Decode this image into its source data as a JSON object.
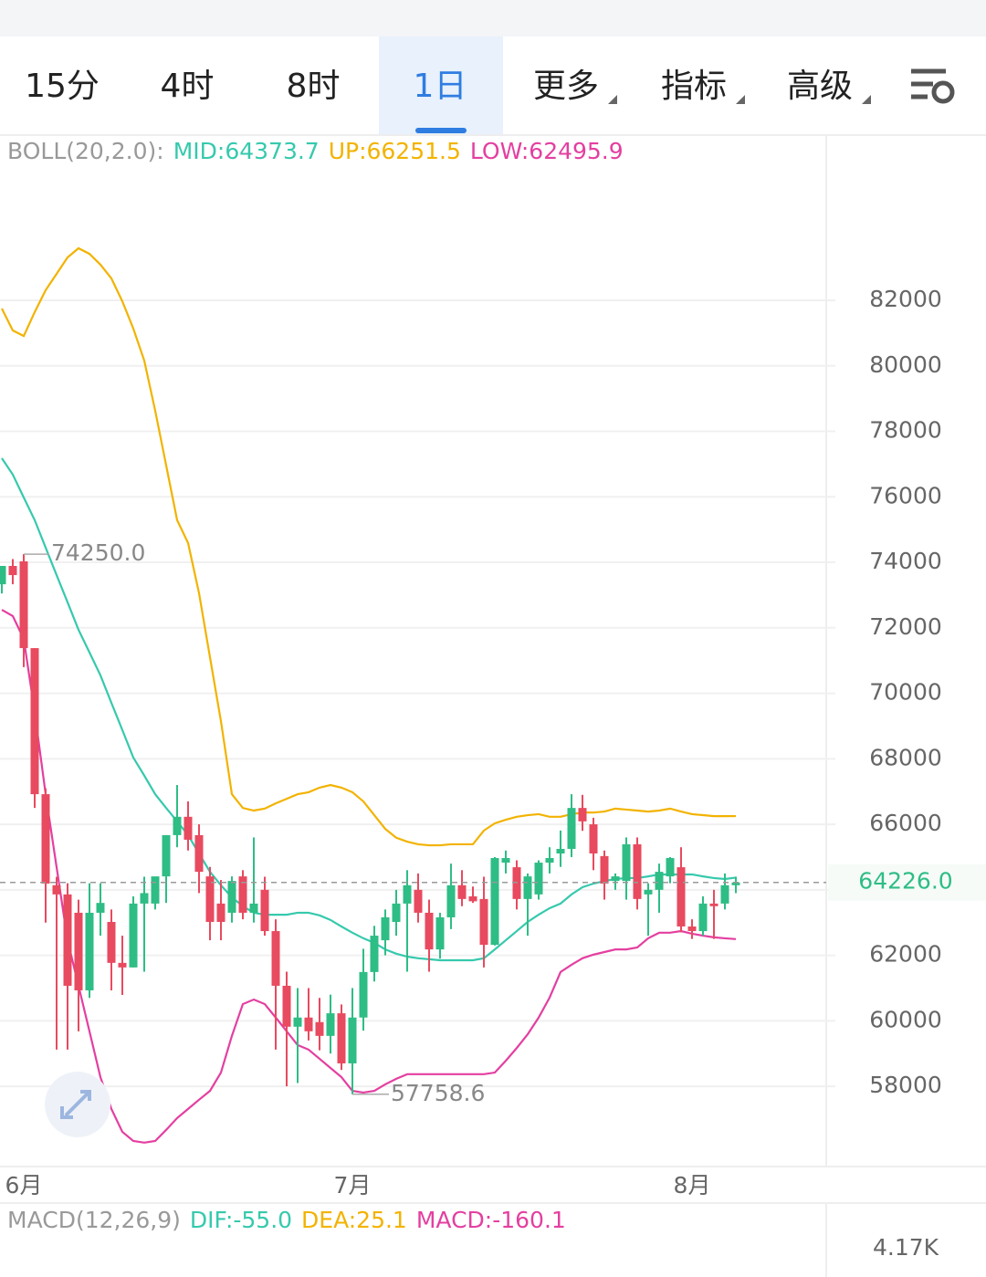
{
  "tabs": {
    "items": [
      "15分",
      "4时",
      "8时",
      "1日",
      "更多",
      "指标",
      "高级"
    ],
    "selected": 3
  },
  "chart_data": {
    "type": "candlestick",
    "legend": {
      "label": "BOLL(20,2.0):",
      "items": [
        "MID:64373.7",
        "UP:66251.5",
        "LOW:62495.9"
      ]
    },
    "categories": [
      null,
      null,
      "6月",
      null,
      null,
      null,
      null,
      null,
      null,
      null,
      null,
      null,
      null,
      null,
      null,
      null,
      null,
      null,
      null,
      null,
      null,
      null,
      null,
      null,
      null,
      null,
      null,
      null,
      null,
      null,
      null,
      null,
      "7月",
      null,
      null,
      null,
      null,
      null,
      null,
      null,
      null,
      null,
      null,
      null,
      null,
      null,
      null,
      null,
      null,
      null,
      null,
      null,
      null,
      null,
      null,
      null,
      null,
      null,
      null,
      null,
      null,
      null,
      null,
      "8月",
      null,
      null,
      null,
      null
    ],
    "open": [
      73330,
      73890,
      74030,
      71380,
      66920,
      64140,
      63860,
      63300,
      60930,
      63300,
      63020,
      61770,
      61630,
      63580,
      63580,
      64410,
      65670,
      66230,
      65670,
      64410,
      63580,
      63300,
      64410,
      63300,
      64000,
      62740,
      61070,
      59820,
      60100,
      59960,
      59540,
      60230,
      58700,
      60100,
      61490,
      62460,
      63020,
      63580,
      64000,
      63300,
      62180,
      63160,
      64140,
      63800,
      63720,
      62320,
      64830,
      64690,
      63720,
      63860,
      64830,
      65110,
      65250,
      66500,
      66000,
      65030,
      64270,
      64270,
      65390,
      63860,
      64000,
      64410,
      64690,
      62880,
      62740,
      63580,
      63580,
      64140
    ],
    "high": [
      73890,
      74100,
      74250,
      71380,
      67100,
      64400,
      64200,
      63700,
      64200,
      64200,
      63400,
      62600,
      63800,
      64400,
      64400,
      65670,
      67200,
      66700,
      66000,
      64700,
      64300,
      64410,
      64600,
      65600,
      64400,
      63100,
      61500,
      61000,
      61000,
      60700,
      60800,
      60500,
      61000,
      62200,
      62900,
      63400,
      64000,
      64600,
      64500,
      63700,
      63300,
      64800,
      64600,
      64100,
      64400,
      65000,
      65200,
      64900,
      64500,
      64900,
      65300,
      65810,
      66920,
      66900,
      66200,
      65200,
      64500,
      65600,
      65600,
      64200,
      64800,
      65000,
      65300,
      63100,
      63800,
      64000,
      64500,
      64400
    ],
    "low": [
      73050,
      73330,
      70800,
      66500,
      63000,
      59120,
      59120,
      59680,
      60700,
      62600,
      60930,
      60790,
      61630,
      61500,
      63400,
      63600,
      65300,
      65200,
      63900,
      62460,
      62460,
      63000,
      63100,
      63000,
      62600,
      59120,
      58000,
      58100,
      59400,
      59100,
      59000,
      58500,
      57758.6,
      59700,
      61200,
      62000,
      62600,
      61500,
      63000,
      61500,
      61900,
      62800,
      63500,
      63600,
      61630,
      62300,
      64500,
      63400,
      62600,
      63700,
      64500,
      64700,
      65000,
      65800,
      64600,
      63700,
      64000,
      63700,
      63400,
      62600,
      63300,
      64200,
      62700,
      62500,
      62600,
      62500,
      63400,
      63900
    ],
    "close": [
      73890,
      73610,
      71380,
      66920,
      64190,
      63860,
      61070,
      60930,
      63300,
      63600,
      61770,
      61630,
      63580,
      63900,
      64410,
      65670,
      66230,
      65530,
      64550,
      63020,
      63020,
      64270,
      63300,
      63580,
      62740,
      61070,
      59820,
      60100,
      59680,
      59540,
      60230,
      58700,
      60100,
      61490,
      62600,
      63160,
      63580,
      64140,
      63300,
      62180,
      63160,
      64140,
      63720,
      63650,
      62320,
      64970,
      64970,
      63720,
      64410,
      64830,
      64970,
      65250,
      66500,
      66090,
      65110,
      64190,
      64410,
      65390,
      63720,
      64000,
      64550,
      64970,
      62880,
      62740,
      63580,
      63500,
      64140,
      64226
    ],
    "up_color": "#2ebd85",
    "down_color": "#e84a5f",
    "series": [
      {
        "color": "#36c9ad",
        "values": [
          77180,
          76680,
          75980,
          75290,
          74450,
          73610,
          72780,
          71940,
          71250,
          70550,
          69710,
          68880,
          68040,
          67490,
          66920,
          66500,
          66090,
          65670,
          65110,
          64550,
          64140,
          63770,
          63500,
          63300,
          63240,
          63240,
          63240,
          63300,
          63300,
          63220,
          63080,
          62880,
          62690,
          62520,
          62380,
          62180,
          62050,
          61960,
          61910,
          61880,
          61850,
          61850,
          61850,
          61850,
          61910,
          62180,
          62460,
          62740,
          63020,
          63240,
          63440,
          63580,
          63860,
          64080,
          64190,
          64270,
          64330,
          64360,
          64360,
          64410,
          64470,
          64470,
          64470,
          64470,
          64410,
          64360,
          64330,
          64373.7
        ]
      },
      {
        "color": "#f2b300",
        "values": [
          81750,
          81080,
          80910,
          81640,
          82310,
          82810,
          83310,
          83590,
          83420,
          83090,
          82670,
          81970,
          81140,
          80160,
          78630,
          76960,
          75290,
          74590,
          73060,
          71100,
          69150,
          66920,
          66500,
          66420,
          66480,
          66640,
          66780,
          66920,
          66980,
          67120,
          67200,
          67120,
          66980,
          66700,
          66280,
          65860,
          65590,
          65470,
          65390,
          65360,
          65360,
          65390,
          65390,
          65390,
          65810,
          66030,
          66140,
          66230,
          66280,
          66310,
          66230,
          66230,
          66310,
          66360,
          66360,
          66390,
          66480,
          66450,
          66420,
          66390,
          66420,
          66480,
          66390,
          66310,
          66280,
          66250,
          66250,
          66251.5
        ]
      },
      {
        "color": "#e43fa0",
        "values": [
          72550,
          72360,
          71660,
          69430,
          66920,
          64690,
          62460,
          61070,
          59680,
          58280,
          57310,
          56610,
          56330,
          56280,
          56330,
          56670,
          57030,
          57310,
          57590,
          57860,
          58420,
          59540,
          60510,
          60650,
          60510,
          60100,
          59680,
          59260,
          59120,
          58840,
          58560,
          58280,
          57860,
          57810,
          57860,
          58060,
          58230,
          58370,
          58370,
          58370,
          58370,
          58370,
          58370,
          58370,
          58370,
          58420,
          58780,
          59170,
          59590,
          60100,
          60710,
          61490,
          61710,
          61910,
          62020,
          62100,
          62180,
          62180,
          62240,
          62520,
          62690,
          62690,
          62740,
          62660,
          62600,
          62550,
          62520,
          62495.9
        ]
      }
    ],
    "ylim": [
      55550,
      86990
    ],
    "yticks": [
      58000,
      60000,
      62000,
      64000,
      66000,
      68000,
      70000,
      72000,
      74000,
      76000,
      78000,
      80000,
      82000
    ],
    "grid": true,
    "last_price": {
      "value": 64226,
      "label": "64226.0"
    },
    "annotations": {
      "high_label": "74250.0",
      "low_label": "57758.6"
    }
  },
  "macd": {
    "label": "MACD(12,26,9)",
    "items": [
      "DIF:-55.0",
      "DEA:25.1",
      "MACD:-160.1"
    ],
    "axis_label": "4.17K"
  }
}
